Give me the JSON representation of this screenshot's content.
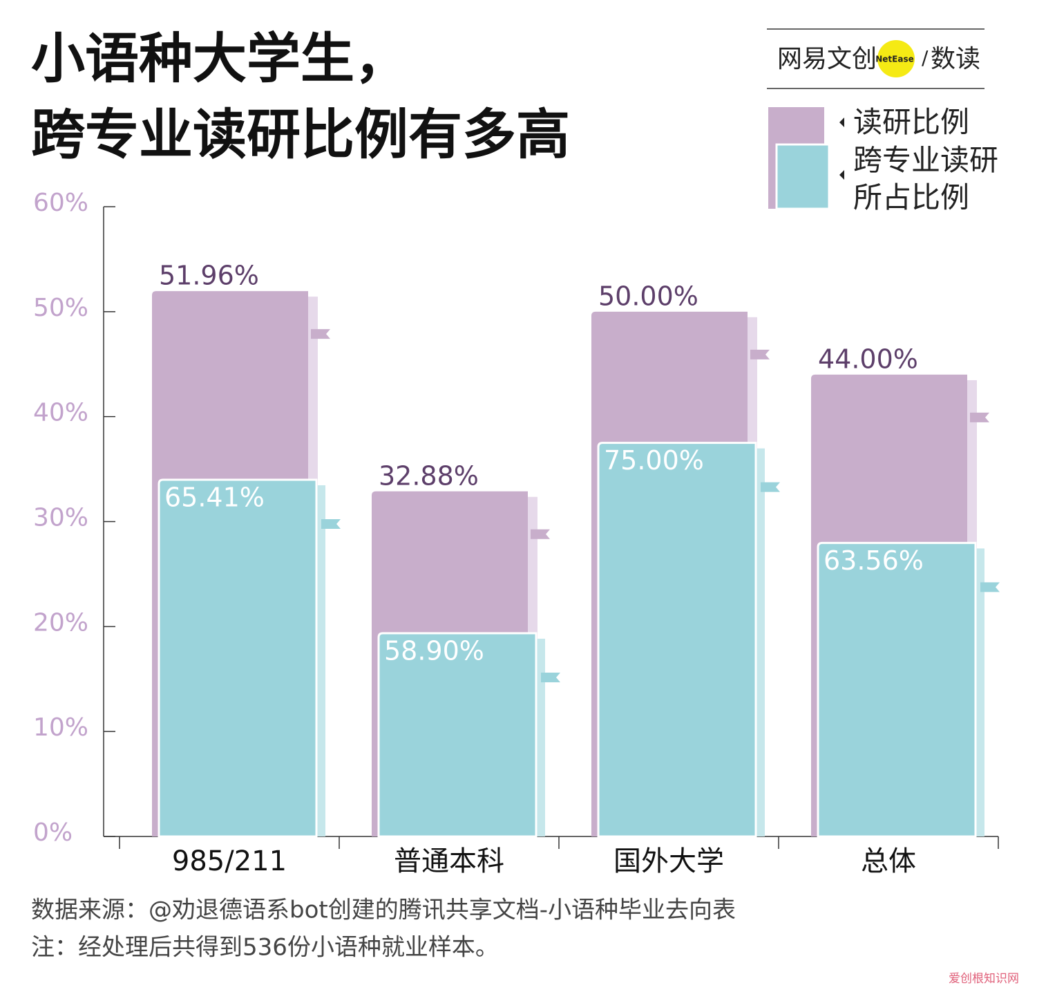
{
  "chart_data": {
    "type": "bar",
    "title": [
      "小语种大学生，",
      "跨专业读研比例有多高"
    ],
    "categories": [
      "985/211",
      "普通本科",
      "国外大学",
      "总体"
    ],
    "series": [
      {
        "name": "读研比例",
        "color": "#c8aecb",
        "values": [
          51.96,
          32.88,
          50.0,
          44.0
        ],
        "value_labels": [
          "51.96%",
          "32.88%",
          "50.00%",
          "44.00%"
        ]
      },
      {
        "name": "跨专业读研所占比例",
        "color": "#9ad3db",
        "values": [
          65.41,
          58.9,
          75.0,
          63.56
        ],
        "value_labels": [
          "65.41%",
          "58.90%",
          "75.00%",
          "63.56%"
        ]
      }
    ],
    "ylim": [
      0,
      60
    ],
    "yticks": [
      {
        "value": 0,
        "label": "0%"
      },
      {
        "value": 10,
        "label": "10%"
      },
      {
        "value": 20,
        "label": "20%"
      },
      {
        "value": 30,
        "label": "30%"
      },
      {
        "value": 40,
        "label": "40%"
      },
      {
        "value": 50,
        "label": "50%"
      },
      {
        "value": 60,
        "label": "60%"
      }
    ],
    "source": "数据来源：@劝退德语系bot创建的腾讯共享文档-小语种毕业去向表",
    "note": "注：经处理后共得到536份小语种就业样本。"
  },
  "logo": {
    "brand": "网易文创",
    "badge": "NetEase",
    "divider": "/",
    "column": "数读"
  },
  "watermark": "爱创根知识网"
}
